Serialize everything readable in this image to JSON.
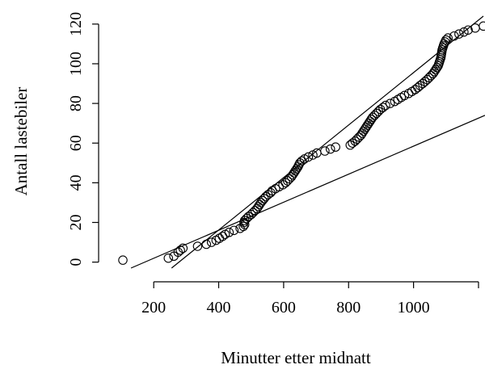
{
  "chart_data": {
    "type": "scatter",
    "title": "",
    "xlabel": "Minutter etter midnatt",
    "ylabel": "Antall lastebiler",
    "xlim": [
      100,
      1220
    ],
    "ylim": [
      -3,
      124
    ],
    "x_ticks": [
      200,
      400,
      600,
      800,
      1000
    ],
    "x_tick_labels": [
      "200",
      "400",
      "600",
      "800",
      "1000"
    ],
    "x_ticks_unlabeled": [
      1200
    ],
    "y_ticks": [
      0,
      20,
      40,
      60,
      80,
      100,
      120
    ],
    "y_tick_labels": [
      "0",
      "20",
      "40",
      "60",
      "80",
      "100",
      "120"
    ],
    "grid": false,
    "legend": "none",
    "series": [
      {
        "marker": "open-circle",
        "points": [
          [
            105,
            1
          ],
          [
            245,
            2
          ],
          [
            262,
            3
          ],
          [
            275,
            5
          ],
          [
            282,
            6
          ],
          [
            290,
            7
          ],
          [
            335,
            8
          ],
          [
            362,
            9
          ],
          [
            378,
            10
          ],
          [
            392,
            11
          ],
          [
            402,
            12
          ],
          [
            412,
            13
          ],
          [
            420,
            14
          ],
          [
            432,
            15
          ],
          [
            447,
            16
          ],
          [
            466,
            17
          ],
          [
            476,
            18
          ],
          [
            480,
            19
          ],
          [
            478,
            20
          ],
          [
            480,
            21
          ],
          [
            486,
            22
          ],
          [
            492,
            23
          ],
          [
            500,
            24
          ],
          [
            506,
            25
          ],
          [
            512,
            26
          ],
          [
            518,
            27
          ],
          [
            522,
            28
          ],
          [
            526,
            29
          ],
          [
            530,
            30
          ],
          [
            535,
            31
          ],
          [
            540,
            32
          ],
          [
            545,
            33
          ],
          [
            552,
            34
          ],
          [
            560,
            35
          ],
          [
            565,
            36
          ],
          [
            575,
            37
          ],
          [
            586,
            38
          ],
          [
            598,
            39
          ],
          [
            606,
            40
          ],
          [
            612,
            41
          ],
          [
            618,
            42
          ],
          [
            624,
            43
          ],
          [
            628,
            44
          ],
          [
            632,
            45
          ],
          [
            636,
            46
          ],
          [
            640,
            47
          ],
          [
            644,
            48
          ],
          [
            647,
            49
          ],
          [
            650,
            50
          ],
          [
            656,
            51
          ],
          [
            664,
            52
          ],
          [
            676,
            53
          ],
          [
            690,
            54
          ],
          [
            702,
            55
          ],
          [
            727,
            56
          ],
          [
            744,
            57
          ],
          [
            760,
            58
          ],
          [
            805,
            59
          ],
          [
            812,
            60
          ],
          [
            820,
            61
          ],
          [
            826,
            62
          ],
          [
            832,
            63
          ],
          [
            838,
            64
          ],
          [
            842,
            65
          ],
          [
            846,
            66
          ],
          [
            850,
            67
          ],
          [
            854,
            68
          ],
          [
            858,
            69
          ],
          [
            862,
            70
          ],
          [
            866,
            71
          ],
          [
            870,
            72
          ],
          [
            874,
            73
          ],
          [
            880,
            74
          ],
          [
            886,
            75
          ],
          [
            892,
            76
          ],
          [
            898,
            77
          ],
          [
            906,
            78
          ],
          [
            914,
            79
          ],
          [
            928,
            80
          ],
          [
            942,
            81
          ],
          [
            952,
            82
          ],
          [
            962,
            83
          ],
          [
            972,
            84
          ],
          [
            985,
            85
          ],
          [
            995,
            86
          ],
          [
            1005,
            87
          ],
          [
            1013,
            88
          ],
          [
            1020,
            89
          ],
          [
            1028,
            90
          ],
          [
            1035,
            91
          ],
          [
            1042,
            92
          ],
          [
            1048,
            93
          ],
          [
            1054,
            94
          ],
          [
            1060,
            95
          ],
          [
            1064,
            96
          ],
          [
            1068,
            97
          ],
          [
            1072,
            98
          ],
          [
            1076,
            99
          ],
          [
            1078,
            100
          ],
          [
            1080,
            101
          ],
          [
            1082,
            102
          ],
          [
            1084,
            103
          ],
          [
            1085,
            104
          ],
          [
            1086,
            105
          ],
          [
            1087,
            106
          ],
          [
            1088,
            107
          ],
          [
            1090,
            108
          ],
          [
            1092,
            109
          ],
          [
            1094,
            110
          ],
          [
            1097,
            111
          ],
          [
            1100,
            112
          ],
          [
            1106,
            113
          ],
          [
            1125,
            114
          ],
          [
            1140,
            115
          ],
          [
            1155,
            116
          ],
          [
            1168,
            117
          ],
          [
            1190,
            118
          ],
          [
            1215,
            119
          ]
        ]
      }
    ],
    "lines": [
      {
        "x1": 255,
        "y1": -3,
        "x2": 1215,
        "y2": 124
      },
      {
        "x1": 130,
        "y1": -3,
        "x2": 1220,
        "y2": 74
      }
    ]
  }
}
